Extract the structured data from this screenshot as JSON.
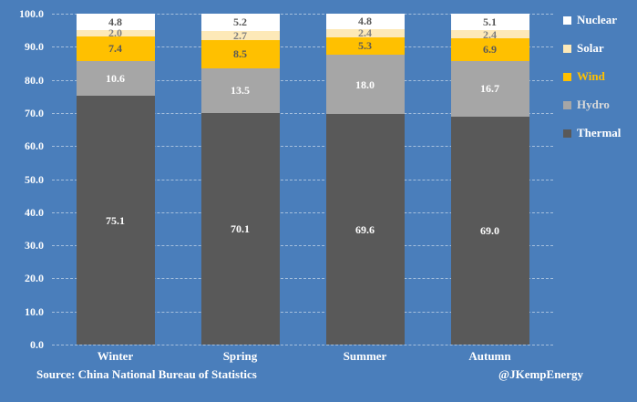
{
  "colors": {
    "background": "#4a7ebb",
    "gridline": "rgba(255,255,255,0.5)",
    "axis_text": "#ffffff"
  },
  "chart_data": {
    "type": "bar",
    "stacked": true,
    "categories": [
      "Winter",
      "Spring",
      "Summer",
      "Autumn"
    ],
    "series": [
      {
        "name": "Thermal",
        "color": "#595959",
        "label_color": "#ffffff",
        "values": [
          75.1,
          70.1,
          69.6,
          69.0
        ]
      },
      {
        "name": "Hydro",
        "color": "#a6a6a6",
        "label_color": "#ffffff",
        "values": [
          10.6,
          13.5,
          18.0,
          16.7
        ]
      },
      {
        "name": "Wind",
        "color": "#ffc000",
        "label_color": "#595959",
        "values": [
          7.4,
          8.5,
          5.3,
          6.9
        ]
      },
      {
        "name": "Solar",
        "color": "#fde9b8",
        "label_color": "#7f7f7f",
        "values": [
          2.0,
          2.7,
          2.4,
          2.4
        ]
      },
      {
        "name": "Nuclear",
        "color": "#ffffff",
        "label_color": "#595959",
        "values": [
          4.8,
          5.2,
          4.8,
          5.1
        ]
      }
    ],
    "title": "",
    "xlabel": "",
    "ylabel": "",
    "ylim": [
      0,
      100
    ],
    "ytick_step": 10,
    "ytick_decimals": 1,
    "value_decimals": 1,
    "grid": true,
    "legend_position": "right",
    "legend": [
      {
        "label": "Nuclear",
        "swatch": "#ffffff",
        "text_color": "#ffffff"
      },
      {
        "label": "Solar",
        "swatch": "#fde9b8",
        "text_color": "#ffffff"
      },
      {
        "label": "Wind",
        "swatch": "#ffc000",
        "text_color": "#ffc000"
      },
      {
        "label": "Hydro",
        "swatch": "#a6a6a6",
        "text_color": "#d9d9d9"
      },
      {
        "label": "Thermal",
        "swatch": "#595959",
        "text_color": "#ffffff"
      }
    ]
  },
  "footer": {
    "source": "Source: China National Bureau of Statistics",
    "attribution": "@JKempEnergy"
  }
}
